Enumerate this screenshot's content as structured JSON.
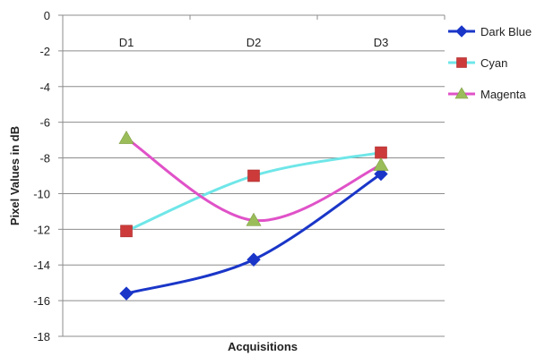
{
  "chart_data": {
    "type": "line",
    "title": "",
    "xlabel": "Acquisitions",
    "ylabel": "Pixel Values in dB",
    "categories": [
      "D1",
      "D2",
      "D3"
    ],
    "ylim": [
      -18,
      0
    ],
    "yticks": [
      0,
      -2,
      -4,
      -6,
      -8,
      -10,
      -12,
      -14,
      -16,
      -18
    ],
    "grid": true,
    "smooth": true,
    "x_axis_position": "top",
    "legend_position": "right",
    "series": [
      {
        "name": "Dark Blue",
        "values": [
          -15.6,
          -13.7,
          -8.9
        ],
        "color": "#1a36c8",
        "marker": "diamond"
      },
      {
        "name": "Cyan",
        "values": [
          -12.1,
          -9.0,
          -7.7
        ],
        "color": "#6fe6e8",
        "marker": "square",
        "marker_color": "#cc3a3a"
      },
      {
        "name": "Magenta",
        "values": [
          -6.9,
          -11.5,
          -8.4
        ],
        "color": "#e052c8",
        "marker": "triangle",
        "marker_color": "#9abd5a"
      }
    ]
  }
}
